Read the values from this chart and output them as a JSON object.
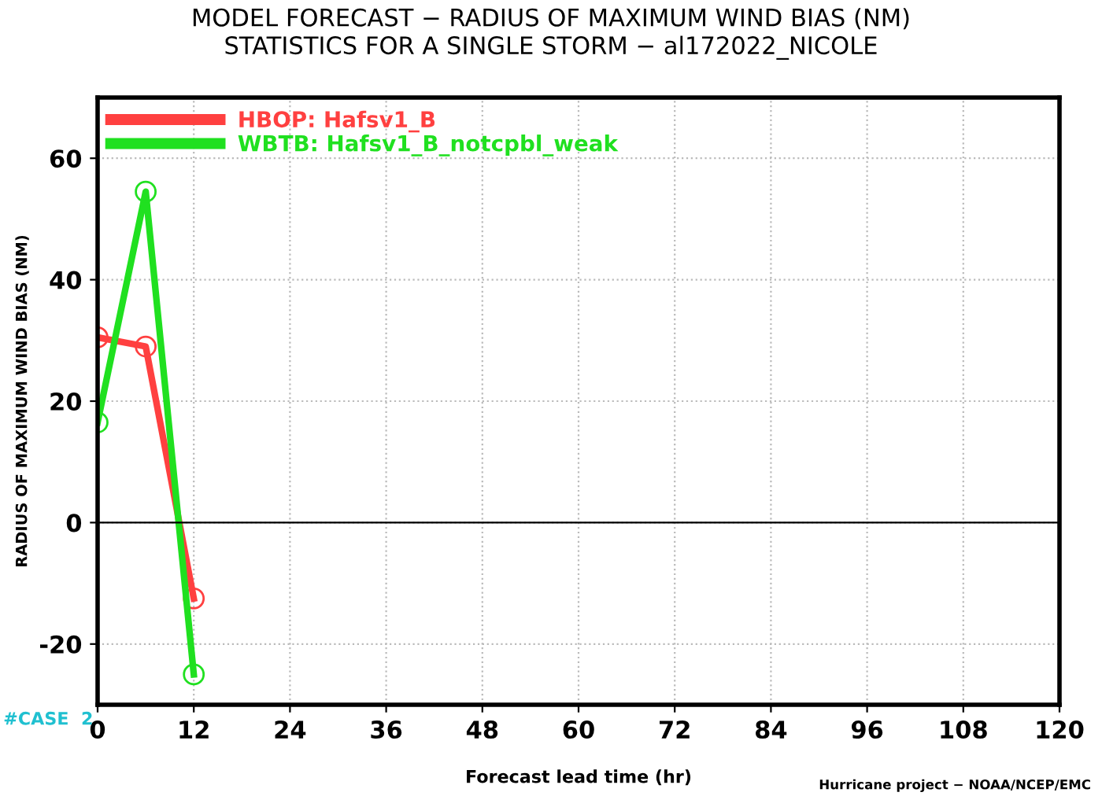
{
  "chart_data": {
    "type": "line",
    "title": "MODEL FORECAST − RADIUS OF MAXIMUM WIND BIAS (NM)",
    "subtitle": "STATISTICS FOR A SINGLE STORM − al172022_NICOLE",
    "xlabel": "Forecast lead time (hr)",
    "ylabel": "RADIUS OF MAXIMUM WIND BIAS (NM)",
    "x": [
      0,
      6,
      12
    ],
    "series": [
      {
        "name": "HBOP: Hafsv1_B",
        "color": "#ff4040",
        "values": [
          30.5,
          29,
          -12.5
        ]
      },
      {
        "name": "WBTB: Hafsv1_B_notcpbl_weak",
        "color": "#20e020",
        "values": [
          16.5,
          54.5,
          -25
        ]
      }
    ],
    "xlim": [
      0,
      120
    ],
    "xticks": [
      0,
      12,
      24,
      36,
      48,
      60,
      72,
      84,
      96,
      108,
      120
    ],
    "ylim": [
      -30,
      70
    ],
    "yticks": [
      -20,
      0,
      20,
      40,
      60
    ],
    "ref_lines": [
      {
        "axis": "y",
        "value": 0,
        "label": null,
        "color": "#000000"
      }
    ],
    "grid": true,
    "legend": "top left",
    "marker": "circle",
    "line_style": "solid",
    "annotations": [
      "#CASE  2",
      "Hurricane project − NOAA/NCEP/EMC"
    ]
  }
}
